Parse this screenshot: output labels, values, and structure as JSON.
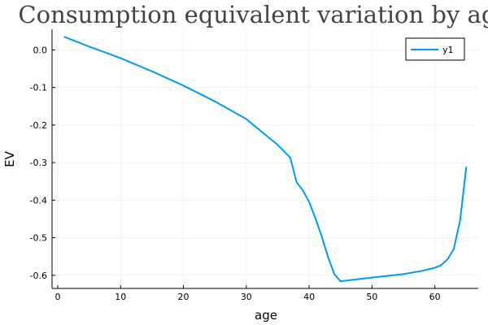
{
  "chart_data": {
    "type": "line",
    "title": "Consumption equivalent variation by age",
    "xlabel": "age",
    "ylabel": "EV",
    "xlim": [
      -0.9,
      66.9
    ],
    "ylim": [
      -0.635,
      0.055
    ],
    "xticks": [
      0,
      10,
      20,
      30,
      40,
      50,
      60
    ],
    "yticks": [
      0.0,
      -0.1,
      -0.2,
      -0.3,
      -0.4,
      -0.5,
      -0.6
    ],
    "xtick_labels": [
      "0",
      "10",
      "20",
      "30",
      "40",
      "50",
      "60"
    ],
    "ytick_labels": [
      "0.0",
      "-0.1",
      "-0.2",
      "-0.3",
      "-0.4",
      "-0.5",
      "-0.6"
    ],
    "grid": true,
    "legend_position": "top-right",
    "series": [
      {
        "name": "y1",
        "color": "#009AFA",
        "x": [
          1,
          5,
          10,
          15,
          20,
          25,
          30,
          35,
          37,
          38,
          39,
          40,
          41,
          42,
          43,
          44,
          45,
          46,
          50,
          55,
          58,
          60,
          61,
          62,
          63,
          64,
          65
        ],
        "y": [
          0.035,
          0.009,
          -0.022,
          -0.057,
          -0.095,
          -0.137,
          -0.184,
          -0.253,
          -0.287,
          -0.352,
          -0.374,
          -0.405,
          -0.448,
          -0.497,
          -0.551,
          -0.597,
          -0.616,
          -0.614,
          -0.606,
          -0.597,
          -0.588,
          -0.58,
          -0.573,
          -0.558,
          -0.53,
          -0.455,
          -0.311
        ]
      }
    ]
  }
}
